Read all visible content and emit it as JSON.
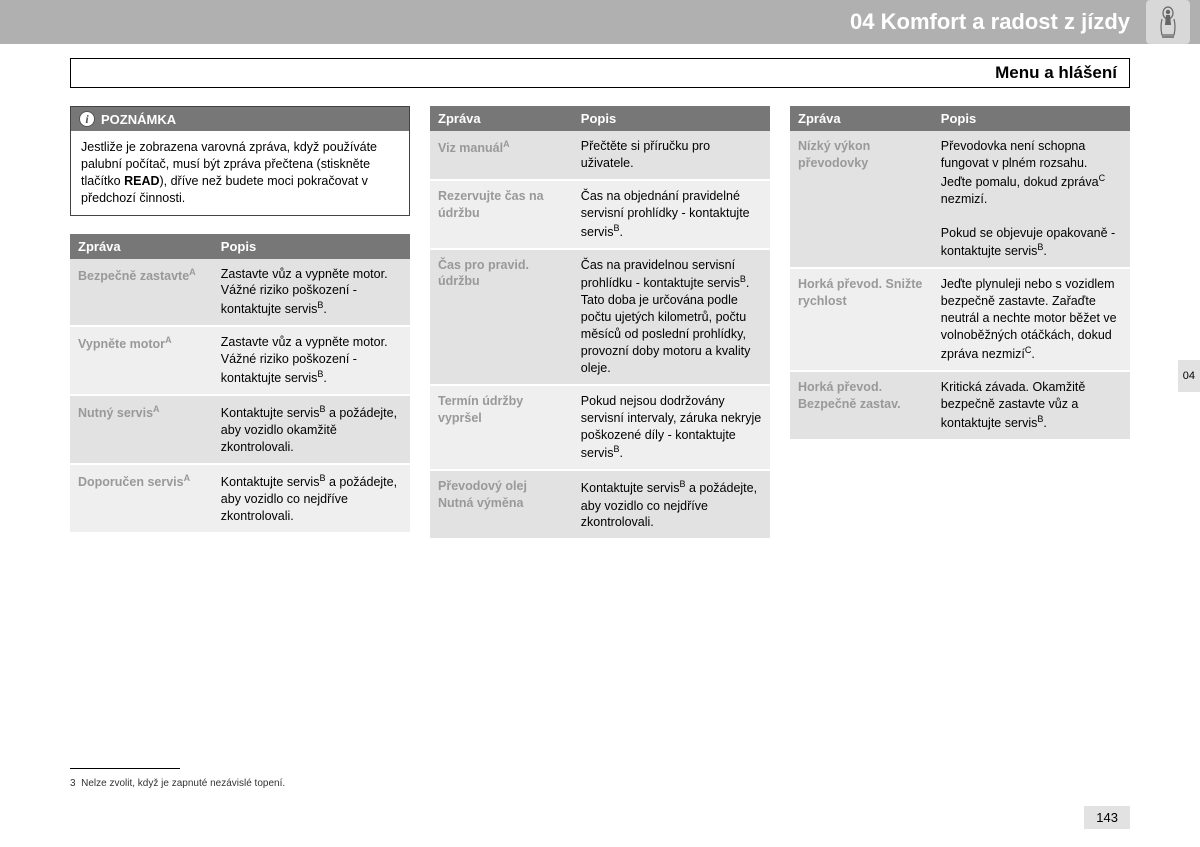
{
  "header": {
    "title": "04 Komfort a radost z jízdy",
    "icon_name": "child-seat-icon"
  },
  "subheader": "Menu a hlášení",
  "note": {
    "label": "POZNÁMKA",
    "body_pre": "Jestliže je zobrazena varovná zpráva, když používáte palubní počítač, musí být zpráva přečtena (stiskněte tlačítko ",
    "body_bold": "READ",
    "body_post": "), dříve než budete moci pokračovat v předchozí činnosti."
  },
  "table_headers": {
    "col1": "Zpráva",
    "col2": "Popis"
  },
  "col1_rows": [
    {
      "label": "Bezpečně zastavte",
      "sup": "A",
      "desc": "Zastavte vůz a vypněte motor. Vážné riziko poškození - kontaktujte servis",
      "desc_sup": "B",
      "desc_post": "."
    },
    {
      "label": "Vypněte motor",
      "sup": "A",
      "desc": "Zastavte vůz a vypněte motor. Vážné riziko poškození - kontaktujte servis",
      "desc_sup": "B",
      "desc_post": "."
    },
    {
      "label": "Nutný servis",
      "sup": "A",
      "desc": "Kontaktujte servis",
      "desc_sup": "B",
      "desc_post": " a požádejte, aby vozidlo okamžitě zkontrolovali."
    },
    {
      "label": "Doporučen servis",
      "sup": "A",
      "desc": "Kontaktujte servis",
      "desc_sup": "B",
      "desc_post": " a požádejte, aby vozidlo co nejdříve zkontrolovali."
    }
  ],
  "col2_rows": [
    {
      "label": "Viz manuál",
      "sup": "A",
      "desc": "Přečtěte si příručku pro uživatele."
    },
    {
      "label": "Rezervujte čas na údržbu",
      "sup": "",
      "desc": "Čas na objednání pravidelné servisní prohlídky - kontaktujte servis",
      "desc_sup": "B",
      "desc_post": "."
    },
    {
      "label": "Čas pro pravid. údržbu",
      "sup": "",
      "desc": "Čas na pravidelnou servisní prohlídku - kontaktujte servis",
      "desc_sup": "B",
      "desc_post": ". Tato doba je určována podle počtu ujetých kilometrů, počtu měsíců od poslední prohlídky, provozní doby motoru a kvality oleje."
    },
    {
      "label": "Termín údržby vypršel",
      "sup": "",
      "desc": "Pokud nejsou dodržovány servisní intervaly, záruka nekryje poškozené díly - kontaktujte servis",
      "desc_sup": "B",
      "desc_post": "."
    },
    {
      "label": "Převodový olej Nutná výměna",
      "sup": "",
      "desc": "Kontaktujte servis",
      "desc_sup": "B",
      "desc_post": " a požádejte, aby vozidlo co nejdříve zkontrolovali."
    }
  ],
  "col3_rows": [
    {
      "label": "Nízký výkon převodovky",
      "sup": "",
      "desc_html": "Převodovka není schopna fungovat v plném rozsahu. Jeďte pomalu, dokud zpráva<sup>C</sup> nezmizí.<br><br>Pokud se objevuje opakovaně - kontaktujte servis<sup>B</sup>."
    },
    {
      "label": "Horká převod. Snižte rychlost",
      "sup": "",
      "desc_html": "Jeďte plynuleji nebo s vozidlem bezpečně zastavte. Zařaďte neutrál a nechte motor běžet ve volnoběžných otáčkách, dokud zpráva nezmizí<sup>C</sup>."
    },
    {
      "label": "Horká převod. Bezpečně zastav.",
      "sup": "",
      "desc_html": "Kritická závada. Okamžitě bezpečně zastavte vůz a kontaktujte servis<sup>B</sup>."
    }
  ],
  "footnote": {
    "num": "3",
    "text": "Nelze zvolit, když je zapnuté nezávislé topení."
  },
  "page_number": "143",
  "side_tab": "04"
}
